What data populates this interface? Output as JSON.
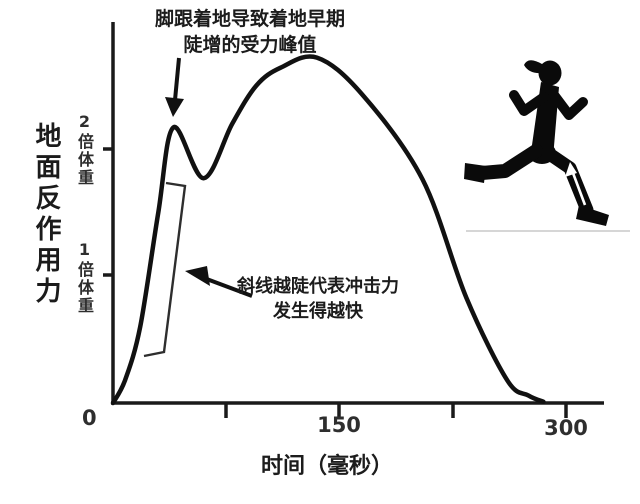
{
  "chart_data": {
    "type": "line",
    "title": "",
    "xlabel": "时间（毫秒）",
    "ylabel": "地面反作用力",
    "xlim": [
      0,
      325
    ],
    "ylim": [
      0,
      3
    ],
    "grid": false,
    "legend": "none",
    "x_axis_ticks_ms": [
      0,
      75,
      150,
      225,
      300
    ],
    "x_axis_tick_labels": [
      "0",
      "",
      "150",
      "",
      "300"
    ],
    "y_axis_ticks_bodyweight": [
      1,
      2
    ],
    "y_axis_tick_labels": [
      "1倍体重",
      "2倍体重"
    ],
    "series": [
      {
        "name": "地面反作用力",
        "x_unit": "毫秒",
        "y_unit": "倍体重",
        "points": [
          [
            0,
            0
          ],
          [
            8,
            0.18
          ],
          [
            18,
            0.6
          ],
          [
            30,
            1.5
          ],
          [
            40,
            2.17
          ],
          [
            60,
            1.77
          ],
          [
            79,
            2.2
          ],
          [
            95,
            2.5
          ],
          [
            111,
            2.64
          ],
          [
            135,
            2.72
          ],
          [
            165,
            2.43
          ],
          [
            205,
            1.76
          ],
          [
            234,
            0.83
          ],
          [
            261,
            0.18
          ],
          [
            275,
            0.06
          ],
          [
            285,
            0.01
          ]
        ]
      }
    ],
    "key_features": {
      "impact_peak": {
        "t_ms": 40,
        "force_bodyweight": 2.2
      },
      "valley": {
        "t_ms": 60,
        "force_bodyweight": 1.77
      },
      "active_peak": {
        "t_ms": 135,
        "force_bodyweight": 2.7
      },
      "contact_end_ms": 285
    },
    "annotations": [
      {
        "id": "heel-strike",
        "line1": "脚跟着地导致着地早期",
        "line2": "陡增的受力峰值",
        "points_to": "impact-peak"
      },
      {
        "id": "loading-slope",
        "line1": "斜线越陡代表冲击力",
        "line2": "发生得越快",
        "points_to": "steep-rising-slope-bracket"
      }
    ]
  },
  "decorations": {
    "runner_silhouette": "running-person-facing-right",
    "runner_leg_arrow": "white-arrow-up-front-shin",
    "ground_line_color": "#c9c9c9",
    "curve_color": "#111111",
    "axis_color": "#1a1a1a",
    "bracket_color": "#2e2e2e",
    "background": "#ffffff"
  }
}
